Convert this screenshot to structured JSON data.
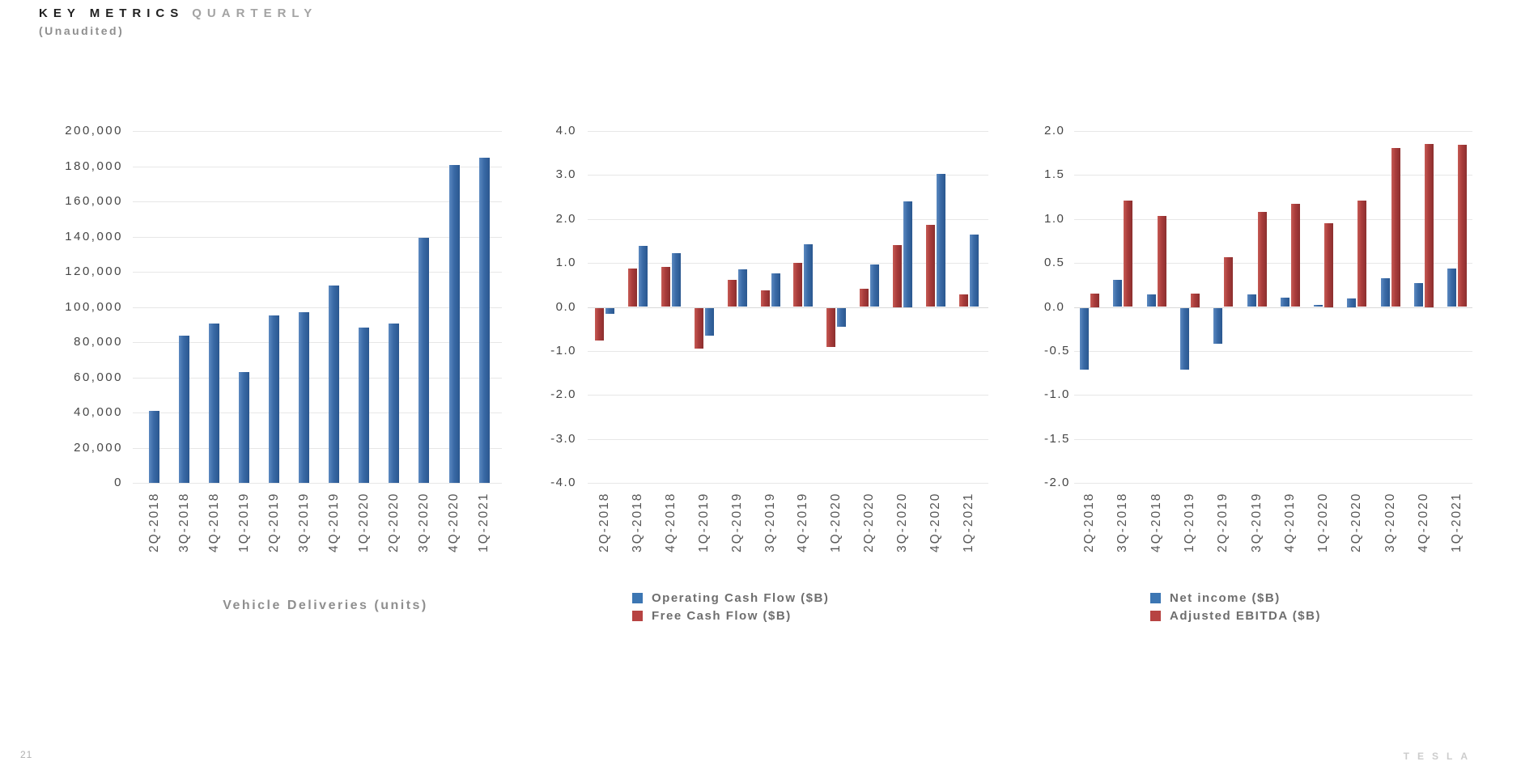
{
  "page": {
    "title_black": "KEY METRICS",
    "title_gray": "QUARTERLY",
    "subtitle": "(Unaudited)",
    "page_number": "21",
    "logo_text": "TESLA"
  },
  "colors": {
    "bar_blue": "#3a6aa6",
    "bar_red": "#a93c3b",
    "gridline": "#e7e7e7",
    "axis_text": "#464646",
    "legend_text": "#6e6e6e"
  },
  "chart_data": [
    {
      "id": "vehicle-deliveries",
      "type": "bar",
      "title": "Vehicle Deliveries (units)",
      "categories": [
        "2Q-2018",
        "3Q-2018",
        "4Q-2018",
        "1Q-2019",
        "2Q-2019",
        "3Q-2019",
        "4Q-2019",
        "1Q-2020",
        "2Q-2020",
        "3Q-2020",
        "4Q-2020",
        "1Q-2021"
      ],
      "series": [
        {
          "name": "Vehicle Deliveries (units)",
          "color": "blue",
          "values": [
            40740,
            83500,
            90700,
            63000,
            95200,
            97000,
            112000,
            88400,
            90650,
            139300,
            180570,
            184800
          ]
        }
      ],
      "legend": null,
      "ylim": [
        0,
        200000
      ],
      "ytick_step": 20000,
      "tick_decimals": 0,
      "grid": true,
      "legend_position": "none"
    },
    {
      "id": "cash-flow",
      "type": "bar",
      "title": "",
      "categories": [
        "2Q-2018",
        "3Q-2018",
        "4Q-2018",
        "1Q-2019",
        "2Q-2019",
        "3Q-2019",
        "4Q-2019",
        "1Q-2020",
        "2Q-2020",
        "3Q-2020",
        "4Q-2020",
        "1Q-2021"
      ],
      "series": [
        {
          "name": "Free Cash Flow ($B)",
          "color": "red",
          "values": [
            -0.74,
            0.88,
            0.91,
            -0.92,
            0.62,
            0.37,
            1.01,
            -0.9,
            0.42,
            1.4,
            1.87,
            0.29
          ]
        },
        {
          "name": "Operating Cash Flow ($B)",
          "color": "blue",
          "values": [
            -0.13,
            1.39,
            1.23,
            -0.64,
            0.86,
            0.76,
            1.43,
            -0.44,
            0.96,
            2.4,
            3.02,
            1.64
          ]
        }
      ],
      "legend": [
        {
          "label": "Operating Cash Flow ($B)",
          "color": "blue"
        },
        {
          "label": "Free Cash Flow ($B)",
          "color": "red"
        }
      ],
      "ylim": [
        -4.0,
        4.0
      ],
      "ytick_step": 1.0,
      "tick_decimals": 1,
      "grid": true,
      "legend_position": "bottom"
    },
    {
      "id": "profitability",
      "type": "bar",
      "title": "",
      "categories": [
        "2Q-2018",
        "3Q-2018",
        "4Q-2018",
        "1Q-2019",
        "2Q-2019",
        "3Q-2019",
        "4Q-2019",
        "1Q-2020",
        "2Q-2020",
        "3Q-2020",
        "4Q-2020",
        "1Q-2021"
      ],
      "series": [
        {
          "name": "Net income ($B)",
          "color": "blue",
          "values": [
            -0.7,
            0.31,
            0.14,
            -0.7,
            -0.41,
            0.14,
            0.11,
            0.02,
            0.1,
            0.33,
            0.27,
            0.44
          ]
        },
        {
          "name": "Adjusted EBITDA ($B)",
          "color": "red",
          "values": [
            0.15,
            1.21,
            1.03,
            0.15,
            0.57,
            1.08,
            1.17,
            0.95,
            1.21,
            1.81,
            1.85,
            1.84
          ]
        }
      ],
      "legend": [
        {
          "label": "Net income ($B)",
          "color": "blue"
        },
        {
          "label": "Adjusted EBITDA ($B)",
          "color": "red"
        }
      ],
      "ylim": [
        -2.0,
        2.0
      ],
      "ytick_step": 0.5,
      "tick_decimals": 1,
      "grid": true,
      "legend_position": "bottom"
    }
  ]
}
